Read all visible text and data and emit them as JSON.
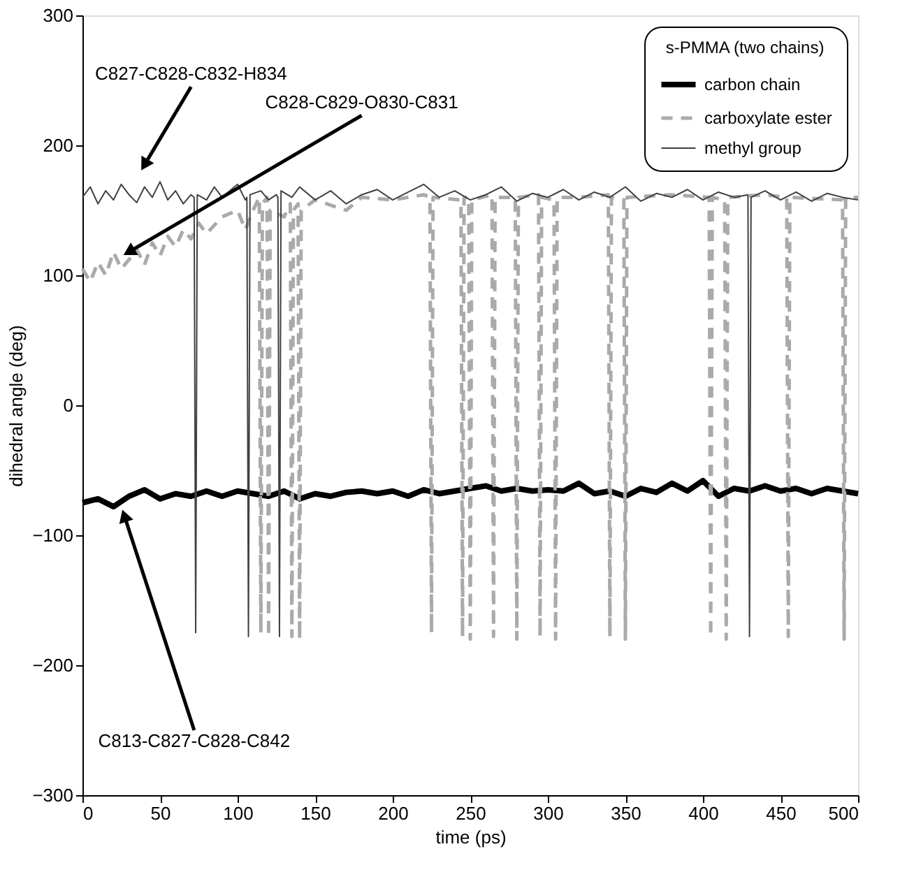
{
  "chart_data": {
    "type": "line",
    "xlabel": "time (ps)",
    "ylabel": "dihedral angle (deg)",
    "legend_title": "s-PMMA (two chains)",
    "legend": "top right",
    "grid": false,
    "marker": "none",
    "xlim": [
      0,
      500
    ],
    "xticks": [
      0,
      50,
      100,
      150,
      200,
      250,
      300,
      350,
      400,
      450,
      500
    ],
    "ylim": [
      -300,
      300
    ],
    "yticks": [
      -300,
      -200,
      -100,
      0,
      100,
      200,
      300
    ],
    "series": [
      {
        "name": "carbon chain",
        "color": "#000000",
        "line_style": "solid",
        "x": [
          0,
          10,
          20,
          30,
          40,
          50,
          60,
          70,
          80,
          90,
          100,
          110,
          120,
          130,
          140,
          150,
          160,
          170,
          180,
          190,
          200,
          210,
          220,
          230,
          240,
          250,
          260,
          270,
          280,
          290,
          300,
          310,
          320,
          330,
          340,
          350,
          360,
          370,
          380,
          390,
          400,
          410,
          420,
          430,
          440,
          450,
          460,
          470,
          480,
          490,
          500
        ],
        "values": [
          -75,
          -72,
          -78,
          -70,
          -65,
          -72,
          -68,
          -70,
          -66,
          -70,
          -66,
          -68,
          -70,
          -66,
          -72,
          -68,
          -70,
          -67,
          -66,
          -68,
          -66,
          -70,
          -65,
          -68,
          -66,
          -64,
          -62,
          -66,
          -64,
          -66,
          -65,
          -66,
          -60,
          -68,
          -66,
          -70,
          -64,
          -67,
          -60,
          -66,
          -58,
          -70,
          -64,
          -66,
          -62,
          -66,
          -64,
          -68,
          -64,
          -66,
          -68
        ]
      },
      {
        "name": "carboxylate ester",
        "color": "#aaaaaa",
        "line_style": "dashed",
        "x": [
          0,
          5,
          10,
          15,
          20,
          25,
          30,
          35,
          40,
          45,
          50,
          55,
          60,
          65,
          70,
          75,
          80,
          90,
          100,
          105,
          110,
          114,
          115,
          116,
          119,
          120,
          121,
          130,
          134,
          135,
          136,
          139,
          140,
          141,
          150,
          170,
          180,
          200,
          220,
          224,
          225,
          226,
          244,
          245,
          246,
          249,
          250,
          251,
          264,
          265,
          266,
          279,
          280,
          281,
          294,
          295,
          296,
          304,
          305,
          306,
          320,
          339,
          340,
          341,
          349,
          350,
          351,
          380,
          404,
          405,
          406,
          414,
          415,
          416,
          440,
          454,
          455,
          456,
          490,
          491,
          492,
          500
        ],
        "values": [
          105,
          95,
          110,
          100,
          118,
          105,
          112,
          120,
          108,
          125,
          115,
          130,
          122,
          135,
          128,
          140,
          132,
          145,
          150,
          135,
          150,
          160,
          -175,
          155,
          160,
          -178,
          150,
          145,
          155,
          -178,
          150,
          155,
          -180,
          150,
          158,
          150,
          160,
          158,
          162,
          160,
          -175,
          160,
          158,
          -178,
          160,
          160,
          -180,
          158,
          162,
          -178,
          160,
          160,
          -180,
          160,
          162,
          -178,
          160,
          158,
          -180,
          160,
          160,
          162,
          -178,
          160,
          158,
          -180,
          160,
          162,
          160,
          -178,
          160,
          158,
          -180,
          160,
          162,
          160,
          -178,
          160,
          158,
          -180,
          160,
          160
        ]
      },
      {
        "name": "methyl group",
        "color": "#404040",
        "line_style": "solid",
        "x": [
          0,
          5,
          10,
          15,
          20,
          25,
          30,
          35,
          40,
          45,
          50,
          55,
          60,
          65,
          70,
          72,
          73,
          74,
          80,
          85,
          90,
          95,
          100,
          105,
          106,
          107,
          108,
          115,
          120,
          125,
          126,
          127,
          128,
          135,
          140,
          150,
          160,
          170,
          180,
          190,
          200,
          210,
          220,
          230,
          240,
          250,
          260,
          270,
          280,
          290,
          300,
          310,
          320,
          330,
          340,
          350,
          360,
          370,
          380,
          390,
          400,
          410,
          420,
          429,
          430,
          431,
          440,
          450,
          460,
          470,
          480,
          490,
          500
        ],
        "values": [
          160,
          168,
          155,
          165,
          158,
          170,
          162,
          156,
          168,
          160,
          172,
          158,
          165,
          155,
          162,
          160,
          -175,
          162,
          158,
          168,
          160,
          165,
          170,
          158,
          160,
          -178,
          162,
          165,
          158,
          162,
          160,
          -178,
          165,
          160,
          168,
          158,
          165,
          155,
          162,
          166,
          158,
          164,
          170,
          160,
          165,
          158,
          162,
          168,
          157,
          163,
          160,
          166,
          158,
          164,
          160,
          168,
          157,
          163,
          160,
          166,
          158,
          164,
          160,
          162,
          -178,
          160,
          165,
          158,
          164,
          157,
          163,
          160,
          158
        ]
      }
    ],
    "annotations": [
      {
        "text": "C827-C828-C832-H834",
        "x": 40,
        "y": 185
      },
      {
        "text": "C828-C829-O830-C831",
        "x": 30,
        "y": 118
      },
      {
        "text": "C813-C827-C828-C842",
        "x": 27,
        "y": -85
      }
    ]
  }
}
